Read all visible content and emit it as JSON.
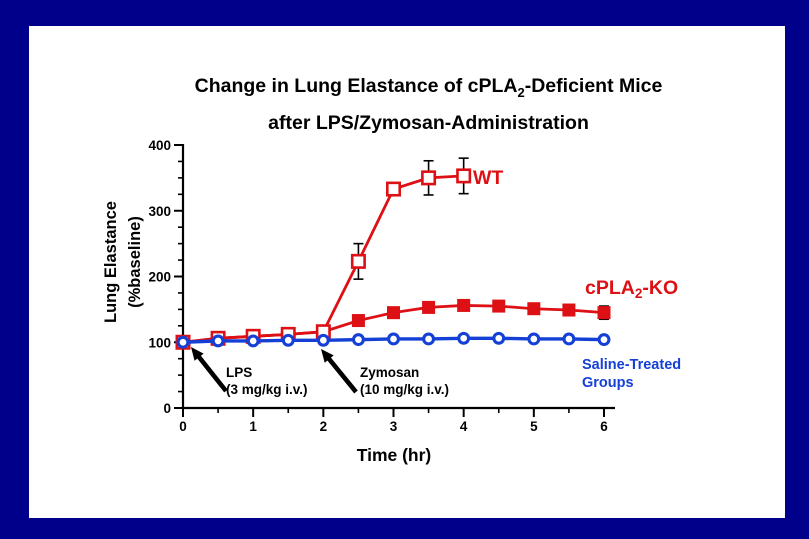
{
  "colors": {
    "background": "#00008B",
    "panel": "#FFFFFF",
    "red": "#DD1015",
    "blue": "#1540D6",
    "axis": "#000000"
  },
  "title": {
    "line1_pre": "Change in Lung Elastance of cPLA",
    "line1_sub": "2",
    "line1_post": "-Deficient Mice",
    "line2": "after LPS/Zymosan-Administration"
  },
  "chart_data": {
    "type": "line",
    "title": "Change in Lung Elastance of cPLA2-Deficient Mice after LPS/Zymosan-Administration",
    "xlabel": "Time (hr)",
    "ylabel": "Lung Elastance (%baseline)",
    "ylabel_lines": [
      "Lung Elastance",
      "(%baseline)"
    ],
    "xlim": [
      0,
      6
    ],
    "ylim": [
      0,
      400
    ],
    "x_ticks": [
      0,
      1,
      2,
      3,
      4,
      5,
      6
    ],
    "y_ticks": [
      0,
      100,
      200,
      300,
      400
    ],
    "x_minor_step": 0.5,
    "y_minor_step": 25,
    "grid": false,
    "legend_position": "inline-labels",
    "series": [
      {
        "name": "WT",
        "marker": "open-square",
        "color": "#DD1015",
        "x": [
          0,
          0.5,
          1,
          1.5,
          2,
          2.5,
          3,
          3.5,
          4
        ],
        "y": [
          100,
          106,
          109,
          112,
          116,
          223,
          333,
          350,
          353
        ],
        "err": [
          0,
          0,
          0,
          0,
          0,
          27,
          0,
          26,
          27
        ],
        "label": {
          "pre": "WT",
          "sub": "",
          "post": ""
        }
      },
      {
        "name": "cPLA2-KO",
        "marker": "filled-square",
        "color": "#DD1015",
        "x": [
          0,
          0.5,
          1,
          1.5,
          2,
          2.5,
          3,
          3.5,
          4,
          4.5,
          5,
          5.5,
          6
        ],
        "y": [
          100,
          106,
          109,
          112,
          116,
          133,
          145,
          153,
          156,
          155,
          151,
          149,
          145
        ],
        "err": [
          0,
          0,
          0,
          0,
          0,
          0,
          0,
          0,
          0,
          6,
          6,
          8,
          10
        ],
        "label": {
          "pre": "cPLA",
          "sub": "2",
          "post": "-KO"
        }
      },
      {
        "name": "Saline-Treated Groups",
        "marker": "open-circle",
        "color": "#1540D6",
        "x": [
          0,
          0.5,
          1,
          1.5,
          2,
          2.5,
          3,
          3.5,
          4,
          4.5,
          5,
          5.5,
          6
        ],
        "y": [
          100,
          102,
          102,
          103,
          103,
          104,
          105,
          105,
          106,
          106,
          105,
          105,
          104
        ],
        "err": [
          0,
          0,
          0,
          0,
          0,
          0,
          0,
          0,
          0,
          0,
          0,
          0,
          0
        ],
        "label": {
          "lines": [
            "Saline-Treated",
            "Groups"
          ]
        }
      }
    ],
    "annotations": [
      {
        "name": "lps",
        "lines": [
          "LPS",
          "(3 mg/kg i.v.)"
        ],
        "points_at_x": 0
      },
      {
        "name": "zymosan",
        "lines": [
          "Zymosan",
          "(10 mg/kg i.v.)"
        ],
        "points_at_x": 2
      }
    ]
  }
}
